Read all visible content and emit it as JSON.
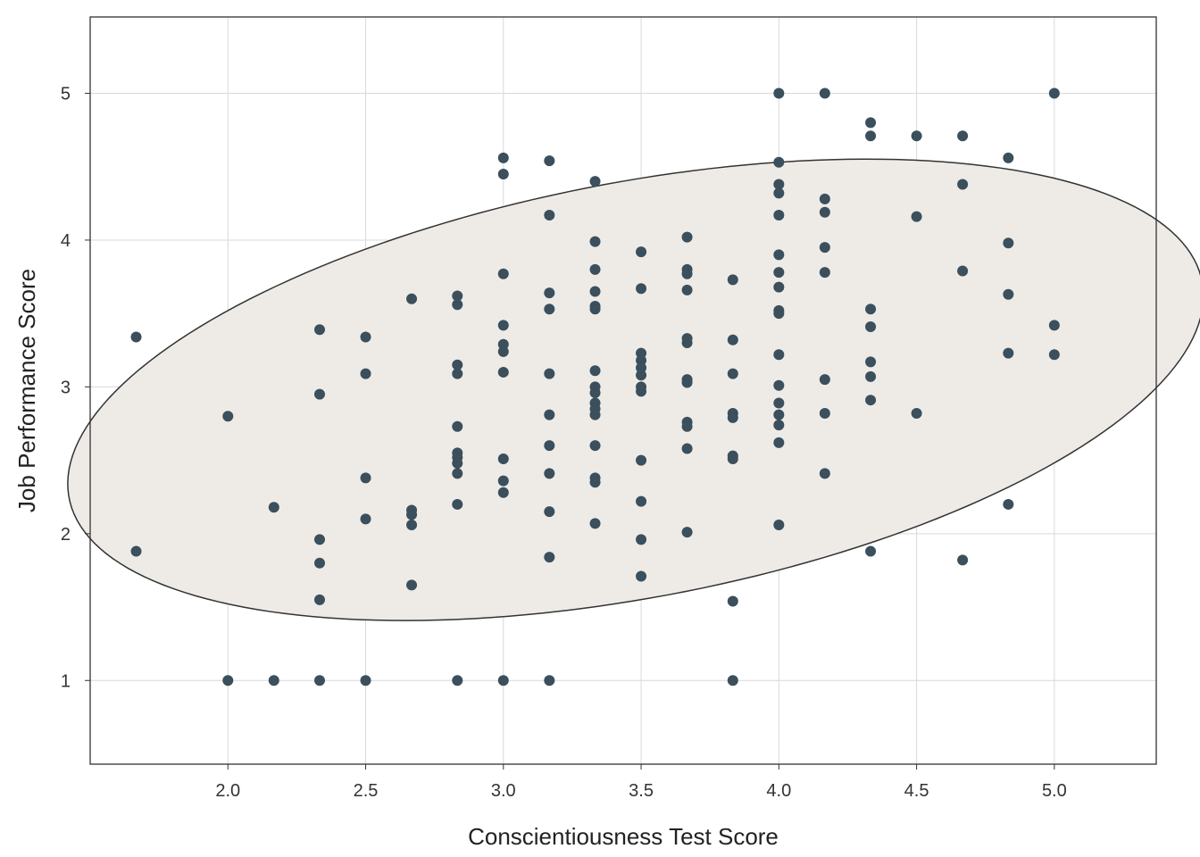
{
  "chart_data": {
    "type": "scatter",
    "title": "",
    "xlabel": "Conscientiousness Test Score",
    "ylabel": "Job Performance Score",
    "xlim": [
      1.5,
      5.37
    ],
    "ylim": [
      0.43,
      5.52
    ],
    "xticks": [
      2.0,
      2.5,
      3.0,
      3.5,
      4.0,
      4.5,
      5.0
    ],
    "xtick_labels": [
      "2.0",
      "2.5",
      "3.0",
      "3.5",
      "4.0",
      "4.5",
      "5.0"
    ],
    "yticks": [
      1,
      2,
      3,
      4,
      5
    ],
    "ytick_labels": [
      "1",
      "2",
      "3",
      "4",
      "5"
    ],
    "grid": true,
    "legend": "none",
    "colors": {
      "point": "#3b4f5c",
      "ellipse_fill": "#eeebe7",
      "ellipse_stroke": "#333333"
    },
    "data_ellipse": {
      "center": [
        3.48,
        2.98
      ],
      "semi_axis_major": 2.225,
      "semi_axis_minor": 1.33,
      "angle_degrees": 28,
      "angle_space": "data-units"
    },
    "points": [
      [
        1.667,
        3.34
      ],
      [
        1.667,
        1.88
      ],
      [
        2.0,
        2.8
      ],
      [
        2.0,
        1.0
      ],
      [
        2.167,
        2.18
      ],
      [
        2.167,
        1.0
      ],
      [
        2.333,
        3.39
      ],
      [
        2.333,
        2.95
      ],
      [
        2.333,
        1.96
      ],
      [
        2.333,
        1.8
      ],
      [
        2.333,
        1.55
      ],
      [
        2.333,
        1.0
      ],
      [
        2.5,
        3.34
      ],
      [
        2.5,
        3.09
      ],
      [
        2.5,
        2.38
      ],
      [
        2.5,
        2.1
      ],
      [
        2.5,
        1.0
      ],
      [
        2.667,
        3.6
      ],
      [
        2.667,
        2.16
      ],
      [
        2.667,
        2.13
      ],
      [
        2.667,
        2.06
      ],
      [
        2.667,
        1.65
      ],
      [
        2.833,
        3.62
      ],
      [
        2.833,
        3.56
      ],
      [
        2.833,
        3.15
      ],
      [
        2.833,
        3.09
      ],
      [
        2.833,
        2.73
      ],
      [
        2.833,
        2.55
      ],
      [
        2.833,
        2.52
      ],
      [
        2.833,
        2.48
      ],
      [
        2.833,
        2.41
      ],
      [
        2.833,
        2.2
      ],
      [
        2.833,
        1.0
      ],
      [
        3.0,
        4.56
      ],
      [
        3.0,
        4.45
      ],
      [
        3.0,
        3.77
      ],
      [
        3.0,
        3.42
      ],
      [
        3.0,
        3.29
      ],
      [
        3.0,
        3.24
      ],
      [
        3.0,
        3.1
      ],
      [
        3.0,
        2.51
      ],
      [
        3.0,
        2.36
      ],
      [
        3.0,
        2.28
      ],
      [
        3.0,
        1.0
      ],
      [
        3.167,
        4.54
      ],
      [
        3.167,
        4.17
      ],
      [
        3.167,
        3.64
      ],
      [
        3.167,
        3.53
      ],
      [
        3.167,
        3.09
      ],
      [
        3.167,
        2.81
      ],
      [
        3.167,
        2.6
      ],
      [
        3.167,
        2.41
      ],
      [
        3.167,
        2.15
      ],
      [
        3.167,
        1.84
      ],
      [
        3.167,
        1.0
      ],
      [
        3.333,
        4.4
      ],
      [
        3.333,
        3.99
      ],
      [
        3.333,
        3.8
      ],
      [
        3.333,
        3.65
      ],
      [
        3.333,
        3.55
      ],
      [
        3.333,
        3.53
      ],
      [
        3.333,
        3.11
      ],
      [
        3.333,
        3.0
      ],
      [
        3.333,
        2.96
      ],
      [
        3.333,
        2.89
      ],
      [
        3.333,
        2.85
      ],
      [
        3.333,
        2.81
      ],
      [
        3.333,
        2.6
      ],
      [
        3.333,
        2.38
      ],
      [
        3.333,
        2.35
      ],
      [
        3.333,
        2.07
      ],
      [
        3.5,
        3.92
      ],
      [
        3.5,
        3.67
      ],
      [
        3.5,
        3.23
      ],
      [
        3.5,
        3.18
      ],
      [
        3.5,
        3.13
      ],
      [
        3.5,
        3.08
      ],
      [
        3.5,
        3.0
      ],
      [
        3.5,
        2.97
      ],
      [
        3.5,
        2.5
      ],
      [
        3.5,
        2.22
      ],
      [
        3.5,
        1.96
      ],
      [
        3.5,
        1.71
      ],
      [
        3.667,
        4.02
      ],
      [
        3.667,
        3.8
      ],
      [
        3.667,
        3.77
      ],
      [
        3.667,
        3.66
      ],
      [
        3.667,
        3.33
      ],
      [
        3.667,
        3.3
      ],
      [
        3.667,
        3.05
      ],
      [
        3.667,
        3.03
      ],
      [
        3.667,
        2.76
      ],
      [
        3.667,
        2.73
      ],
      [
        3.667,
        2.58
      ],
      [
        3.667,
        2.01
      ],
      [
        3.833,
        3.73
      ],
      [
        3.833,
        3.32
      ],
      [
        3.833,
        3.09
      ],
      [
        3.833,
        2.82
      ],
      [
        3.833,
        2.79
      ],
      [
        3.833,
        2.53
      ],
      [
        3.833,
        2.51
      ],
      [
        3.833,
        1.54
      ],
      [
        3.833,
        1.0
      ],
      [
        4.0,
        5.0
      ],
      [
        4.0,
        4.53
      ],
      [
        4.0,
        4.38
      ],
      [
        4.0,
        4.32
      ],
      [
        4.0,
        4.17
      ],
      [
        4.0,
        3.9
      ],
      [
        4.0,
        3.78
      ],
      [
        4.0,
        3.68
      ],
      [
        4.0,
        3.52
      ],
      [
        4.0,
        3.5
      ],
      [
        4.0,
        3.22
      ],
      [
        4.0,
        3.01
      ],
      [
        4.0,
        2.89
      ],
      [
        4.0,
        2.81
      ],
      [
        4.0,
        2.74
      ],
      [
        4.0,
        2.62
      ],
      [
        4.0,
        2.06
      ],
      [
        4.167,
        5.0
      ],
      [
        4.167,
        4.28
      ],
      [
        4.167,
        4.19
      ],
      [
        4.167,
        3.95
      ],
      [
        4.167,
        3.78
      ],
      [
        4.167,
        3.05
      ],
      [
        4.167,
        2.82
      ],
      [
        4.167,
        2.41
      ],
      [
        4.333,
        4.8
      ],
      [
        4.333,
        4.71
      ],
      [
        4.333,
        3.53
      ],
      [
        4.333,
        3.41
      ],
      [
        4.333,
        3.17
      ],
      [
        4.333,
        3.07
      ],
      [
        4.333,
        2.91
      ],
      [
        4.333,
        1.88
      ],
      [
        4.5,
        4.71
      ],
      [
        4.5,
        4.16
      ],
      [
        4.5,
        2.82
      ],
      [
        4.667,
        4.71
      ],
      [
        4.667,
        4.38
      ],
      [
        4.667,
        3.79
      ],
      [
        4.667,
        1.82
      ],
      [
        4.833,
        4.56
      ],
      [
        4.833,
        3.98
      ],
      [
        4.833,
        3.63
      ],
      [
        4.833,
        3.23
      ],
      [
        4.833,
        2.2
      ],
      [
        5.0,
        5.0
      ],
      [
        5.0,
        3.42
      ],
      [
        5.0,
        3.22
      ]
    ]
  }
}
